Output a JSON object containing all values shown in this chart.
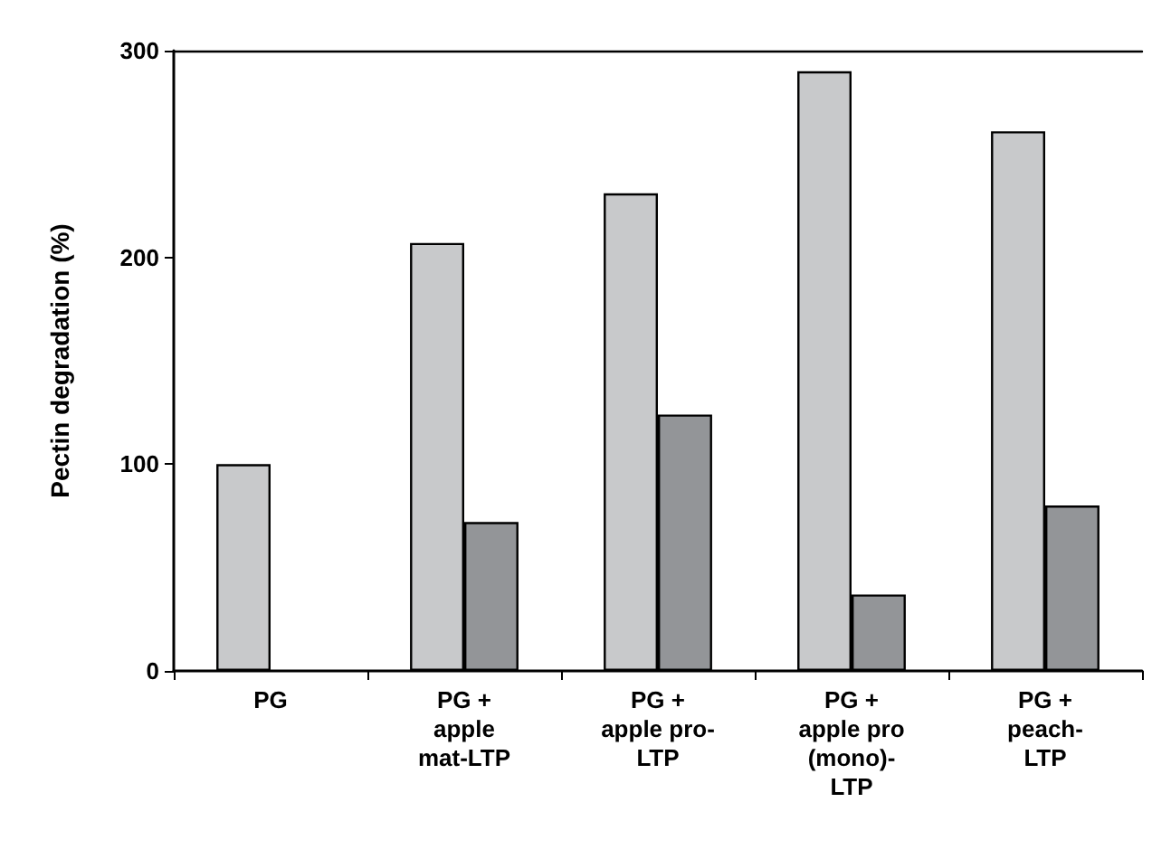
{
  "chart_data": {
    "type": "bar",
    "ylabel": "Pectin degradation (%)",
    "categories": [
      "PG",
      "PG +\napple\nmat-LTP",
      "PG +\napple pro-\nLTP",
      "PG +\napple pro\n(mono)-\nLTP",
      "PG +\npeach-\nLTP"
    ],
    "series": [
      {
        "color": "#c8c9cb",
        "values": [
          100,
          207,
          231,
          290,
          261
        ]
      },
      {
        "color": "#939598",
        "values": [
          null,
          72,
          124,
          37,
          80
        ]
      }
    ],
    "ylim": [
      0,
      300
    ],
    "yticks": [
      0,
      100,
      200,
      300
    ],
    "grid": false
  }
}
